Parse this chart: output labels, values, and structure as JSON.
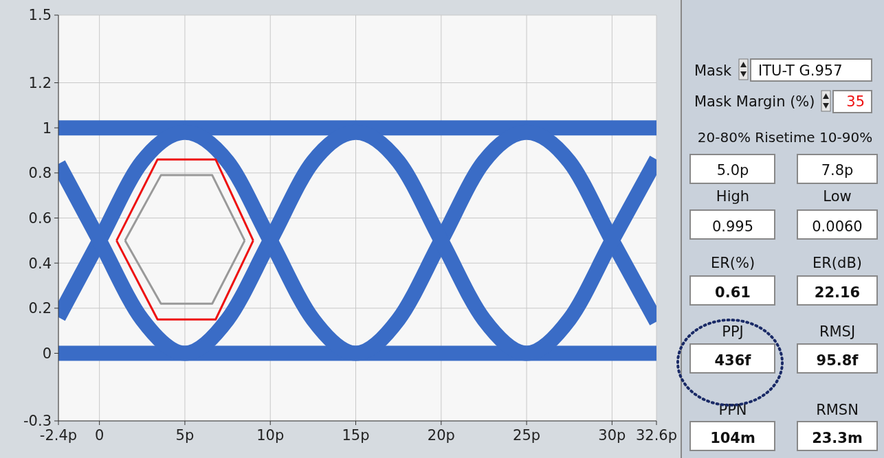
{
  "chart_data": [
    {
      "type": "line",
      "x": [
        -2.4,
        0,
        2.5,
        5,
        7.5,
        10,
        12.5,
        15,
        17.5,
        20,
        22.5,
        25,
        27.5,
        30,
        32.6
      ],
      "series": [
        {
          "color": "#3a6cc6",
          "values": [
            1.0,
            1.0,
            1.0,
            1.0,
            1.0,
            1.0,
            1.0,
            1.0,
            1.0,
            1.0,
            1.0,
            1.0,
            1.0,
            1.0,
            1.0
          ]
        },
        {
          "color": "#3a6cc6",
          "values": [
            0.0,
            0.0,
            0.0,
            0.0,
            0.0,
            0.0,
            0.0,
            0.0,
            0.0,
            0.0,
            0.0,
            0.0,
            0.0,
            0.0,
            0.0
          ]
        },
        {
          "color": "#3a6cc6",
          "values": [
            0.16,
            0.5,
            0.85,
            0.98,
            0.85,
            0.5,
            0.15,
            0.0,
            0.15,
            0.5,
            0.85,
            0.98,
            0.85,
            0.5,
            0.14
          ]
        },
        {
          "color": "#3a6cc6",
          "values": [
            0.84,
            0.5,
            0.15,
            0.0,
            0.15,
            0.5,
            0.85,
            0.98,
            0.85,
            0.5,
            0.15,
            0.0,
            0.15,
            0.5,
            0.86
          ]
        },
        {
          "color": "#ee1111",
          "x": [
            1,
            3.4,
            6.8,
            9
          ],
          "values": [
            0.5,
            0.86,
            0.86,
            0.5
          ]
        },
        {
          "color": "#ee1111",
          "x": [
            1,
            3.4,
            6.8,
            9
          ],
          "values": [
            0.5,
            0.15,
            0.15,
            0.5
          ]
        },
        {
          "color": "#999999",
          "x": [
            1.5,
            3.6,
            6.6,
            8.5
          ],
          "values": [
            0.5,
            0.79,
            0.79,
            0.5
          ]
        },
        {
          "color": "#999999",
          "x": [
            1.5,
            3.6,
            6.6,
            8.5
          ],
          "values": [
            0.5,
            0.22,
            0.22,
            0.5
          ]
        }
      ],
      "xlim": [
        -2.4,
        32.6
      ],
      "xticks": [
        {
          "value": -2.4,
          "label": "-2.4p"
        },
        0,
        {
          "value": 5,
          "label": "5p"
        },
        {
          "value": 10,
          "label": "10p"
        },
        {
          "value": 15,
          "label": "15p"
        },
        {
          "value": 20,
          "label": "20p"
        },
        {
          "value": 25,
          "label": "25p"
        },
        {
          "value": 30,
          "label": "30p"
        },
        {
          "value": 32.6,
          "label": "32.6p"
        }
      ],
      "ylim": [
        -0.3,
        1.5
      ],
      "yticks": [
        -0.3,
        0,
        0.2,
        0.4,
        0.6,
        0.8,
        1,
        1.2,
        1.5
      ],
      "grid": true,
      "marker": "none",
      "line_style": "solid"
    },
    {
      "type": "other",
      "annotations": [
        "Mask",
        "ITU-T G.957",
        "Mask Margin (%)",
        "35",
        "20-80% Risetime 10-90%",
        "5.0p",
        "7.8p",
        "High",
        "Low",
        "0.995",
        "0.0060",
        "ER(%)",
        "ER(dB)",
        "0.61",
        "22.16",
        "PPJ",
        "RMSJ",
        "436f",
        "95.8f",
        "PPN",
        "RMSN",
        "104m",
        "23.3m"
      ]
    }
  ]
}
